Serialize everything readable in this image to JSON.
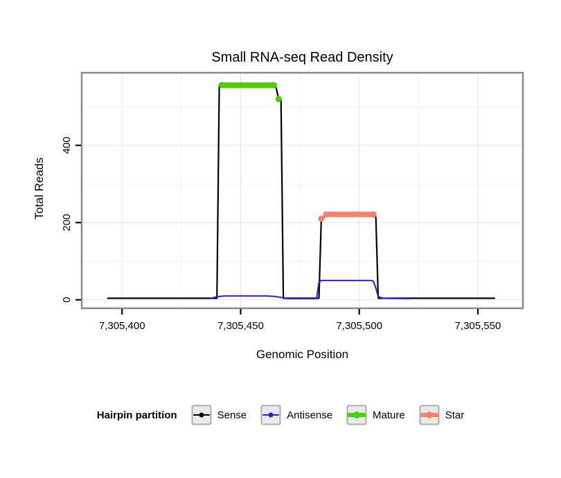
{
  "chart_data": {
    "type": "line",
    "title": "Small RNA-seq Read Density",
    "xlabel": "Genomic Position",
    "ylabel": "Total Reads",
    "xlim": [
      7305383,
      7305569
    ],
    "ylim": [
      -22,
      588
    ],
    "x_ticks": [
      {
        "value": 7305400,
        "label": "7,305,400"
      },
      {
        "value": 7305450,
        "label": "7,305,450"
      },
      {
        "value": 7305500,
        "label": "7,305,500"
      },
      {
        "value": 7305550,
        "label": "7,305,550"
      }
    ],
    "y_ticks": [
      {
        "value": 0,
        "label": "0"
      },
      {
        "value": 200,
        "label": "200"
      },
      {
        "value": 400,
        "label": "400"
      }
    ],
    "grid": {
      "x_major": [
        7305400,
        7305450,
        7305500,
        7305550
      ],
      "x_minor": [
        7305425,
        7305475,
        7305525
      ],
      "y_major": [
        0,
        200,
        400
      ],
      "y_minor": [
        100,
        300,
        500
      ]
    },
    "series": [
      {
        "name": "Sense",
        "kind": "line",
        "color": "#000000",
        "width": 2.2,
        "points": [
          [
            7305394,
            4
          ],
          [
            7305440,
            4
          ],
          [
            7305441,
            556
          ],
          [
            7305464,
            556
          ],
          [
            7305465,
            548
          ],
          [
            7305466,
            520
          ],
          [
            7305467,
            520
          ],
          [
            7305468,
            4
          ],
          [
            7305483,
            4
          ],
          [
            7305484,
            210
          ],
          [
            7305485,
            213
          ],
          [
            7305486,
            221
          ],
          [
            7305506,
            221
          ],
          [
            7305507,
            213
          ],
          [
            7305508,
            4
          ],
          [
            7305557,
            4
          ]
        ]
      },
      {
        "name": "Antisense",
        "kind": "line",
        "color": "#2222dd",
        "width": 2,
        "points": [
          [
            7305437,
            3
          ],
          [
            7305440,
            8
          ],
          [
            7305443,
            10
          ],
          [
            7305461,
            10
          ],
          [
            7305464,
            9
          ],
          [
            7305467,
            6
          ],
          [
            7305470,
            3
          ],
          [
            7305482,
            3
          ],
          [
            7305483,
            45
          ],
          [
            7305484,
            50
          ],
          [
            7305505,
            50
          ],
          [
            7305506,
            48
          ],
          [
            7305507,
            30
          ],
          [
            7305508,
            8
          ],
          [
            7305510,
            4
          ],
          [
            7305521,
            3
          ]
        ]
      },
      {
        "name": "Mature",
        "kind": "marker-segment",
        "color": "#4ccd00",
        "width": 8,
        "segment": [
          [
            7305442,
            556
          ],
          [
            7305464,
            556
          ]
        ],
        "points": [
          [
            7305466,
            520
          ]
        ]
      },
      {
        "name": "Star",
        "kind": "marker-segment",
        "color": "#f4826f",
        "width": 8,
        "segment": [
          [
            7305486,
            221
          ],
          [
            7305506,
            221
          ]
        ],
        "points": [
          [
            7305484,
            210
          ]
        ]
      }
    ]
  },
  "legend": {
    "title": "Hairpin partition",
    "entries": [
      {
        "label": "Sense",
        "color": "#000000",
        "thick": false
      },
      {
        "label": "Antisense",
        "color": "#2222dd",
        "thick": false
      },
      {
        "label": "Mature",
        "color": "#4ccd00",
        "thick": true
      },
      {
        "label": "Star",
        "color": "#f4826f",
        "thick": true
      }
    ]
  }
}
